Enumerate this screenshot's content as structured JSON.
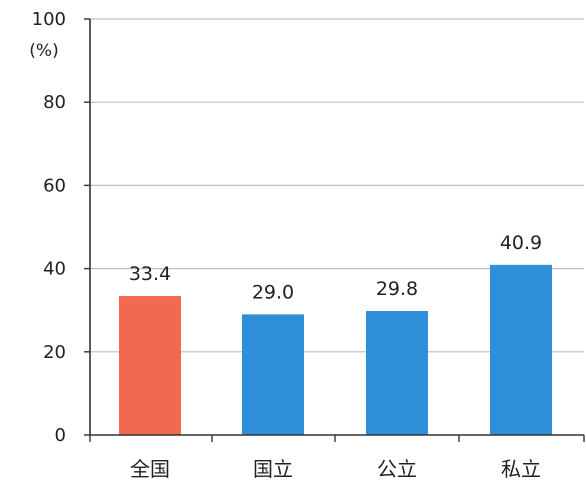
{
  "chart_data": {
    "type": "bar",
    "title": "",
    "xlabel": "",
    "ylabel": "",
    "y_unit_label": "(%)",
    "categories": [
      "全国",
      "国立",
      "公立",
      "私立"
    ],
    "values": [
      33.4,
      29.0,
      29.8,
      40.9
    ],
    "value_labels": [
      "33.4",
      "29.0",
      "29.8",
      "40.9"
    ],
    "ylim": [
      0,
      100
    ],
    "yticks": [
      0,
      20,
      40,
      60,
      80,
      100
    ],
    "grid": true,
    "legend": "none",
    "bar_colors": [
      "#ef6a4e",
      "#2f8fd8",
      "#2f8fd8",
      "#2f8fd8"
    ],
    "grid_color": "#bfbfbf",
    "axis_color": "#333333"
  }
}
